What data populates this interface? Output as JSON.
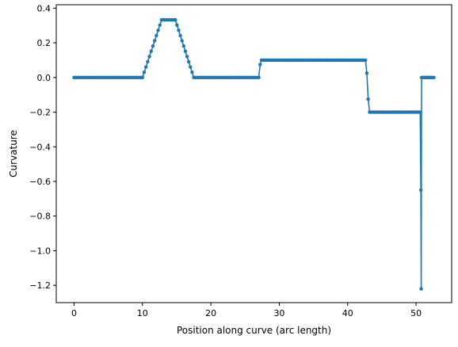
{
  "chart_data": {
    "type": "line",
    "xlabel": "Position along curve (arc length)",
    "ylabel": "Curvature",
    "xlim": [
      -2.6,
      55.2
    ],
    "ylim": [
      -1.3,
      0.42
    ],
    "xticks": [
      0,
      10,
      20,
      30,
      40,
      50
    ],
    "yticks": [
      0.4,
      0.2,
      0.0,
      -0.2,
      -0.4,
      -0.6,
      -0.8,
      -1.0,
      -1.2
    ],
    "xtick_labels": [
      "0",
      "10",
      "20",
      "30",
      "40",
      "50"
    ],
    "ytick_labels": [
      "0.4",
      "0.2",
      "0.0",
      "−0.2",
      "−0.4",
      "−0.6",
      "−0.8",
      "−1.0",
      "−1.2"
    ],
    "grid": false,
    "legend": "none",
    "color": "#1f77b4",
    "marker": "dot",
    "series": [
      {
        "segments": [
          {
            "kind": "constant",
            "x_start": 0.0,
            "x_end": 10.0,
            "y": 0.0,
            "n": 41
          },
          {
            "kind": "ramp",
            "x_start": 10.0,
            "x_end": 12.8,
            "y_start": 0.0,
            "y_end": 0.333,
            "n": 12
          },
          {
            "kind": "constant",
            "x_start": 12.8,
            "x_end": 14.8,
            "y": 0.333,
            "n": 9
          },
          {
            "kind": "ramp",
            "x_start": 14.8,
            "x_end": 17.5,
            "y_start": 0.333,
            "y_end": 0.0,
            "n": 12
          },
          {
            "kind": "constant",
            "x_start": 17.5,
            "x_end": 27.0,
            "y": 0.0,
            "n": 39
          },
          {
            "kind": "points",
            "x": [
              27.2
            ],
            "y": [
              0.075
            ]
          },
          {
            "kind": "constant",
            "x_start": 27.4,
            "x_end": 42.6,
            "y": 0.1,
            "n": 62
          },
          {
            "kind": "points",
            "x": [
              42.8,
              43.0
            ],
            "y": [
              0.025,
              -0.125
            ]
          },
          {
            "kind": "constant",
            "x_start": 43.2,
            "x_end": 50.6,
            "y": -0.2,
            "n": 30
          },
          {
            "kind": "points",
            "x": [
              50.7,
              50.75
            ],
            "y": [
              -0.65,
              -1.22
            ]
          },
          {
            "kind": "constant",
            "x_start": 50.8,
            "x_end": 52.6,
            "y": 0.0,
            "n": 10
          }
        ]
      }
    ]
  }
}
